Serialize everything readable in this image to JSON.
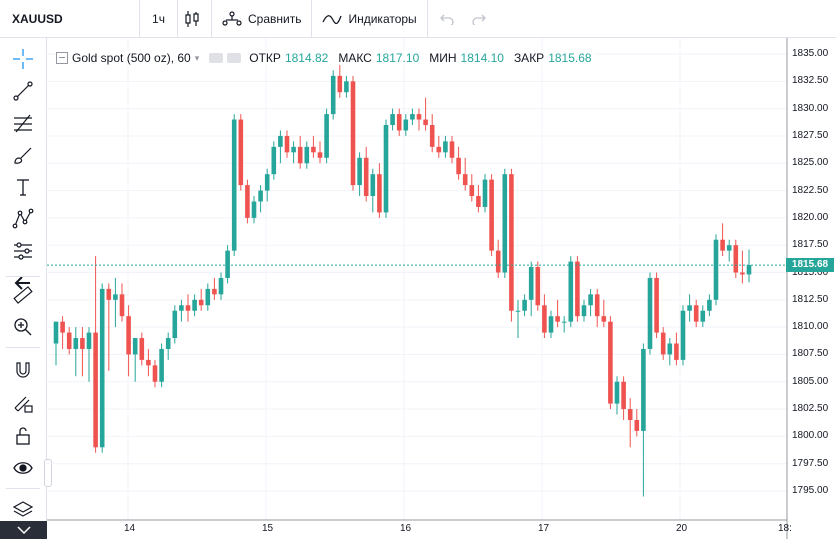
{
  "toolbar": {
    "symbol": "XAUUSD",
    "interval": "1ч",
    "compare_label": "Сравнить",
    "indicators_label": "Индикаторы"
  },
  "legend": {
    "title": "Gold spot (500 oz), 60",
    "open_label": "ОТКР",
    "open_value": "1814.82",
    "high_label": "МАКС",
    "high_value": "1817.10",
    "low_label": "МИН",
    "low_value": "1814.10",
    "close_label": "ЗАКР",
    "close_value": "1815.68"
  },
  "last_price": "1815.68",
  "price_axis": [
    "1835.00",
    "1832.50",
    "1830.00",
    "1827.50",
    "1825.00",
    "1822.50",
    "1820.00",
    "1817.50",
    "1815.00",
    "1812.50",
    "1810.00",
    "1807.50",
    "1805.00",
    "1802.50",
    "1800.00",
    "1797.50",
    "1795.00"
  ],
  "time_axis": [
    "14",
    "15",
    "16",
    "17",
    "20",
    "18:"
  ],
  "colors": {
    "up": "#26a69a",
    "down": "#ef5350",
    "accent": "#2196f3"
  },
  "chart_data": {
    "type": "candlestick",
    "title": "Gold spot (500 oz), 60",
    "ylim": [
      1793.5,
      1836
    ],
    "last": 1815.68,
    "candles": [
      [
        1808.5,
        1810.5,
        1806.5,
        1810.5
      ],
      [
        1810.5,
        1811.0,
        1808.0,
        1809.5
      ],
      [
        1809.5,
        1810.0,
        1807.5,
        1808.0
      ],
      [
        1808.0,
        1810.0,
        1805.5,
        1809.0
      ],
      [
        1809.0,
        1810.0,
        1805.5,
        1808.0
      ],
      [
        1808.0,
        1810.0,
        1805.0,
        1809.5
      ],
      [
        1809.5,
        1816.5,
        1798.5,
        1799.0
      ],
      [
        1799.0,
        1814.0,
        1798.5,
        1813.5
      ],
      [
        1813.5,
        1814.0,
        1806.0,
        1812.5
      ],
      [
        1812.5,
        1814.5,
        1810.0,
        1813.0
      ],
      [
        1813.0,
        1814.0,
        1810.5,
        1811.0
      ],
      [
        1811.0,
        1812.0,
        1805.5,
        1807.5
      ],
      [
        1807.5,
        1809.0,
        1805.0,
        1809.0
      ],
      [
        1809.0,
        1809.5,
        1806.5,
        1807.0
      ],
      [
        1807.0,
        1808.0,
        1805.5,
        1806.5
      ],
      [
        1806.5,
        1807.0,
        1804.5,
        1805.0
      ],
      [
        1805.0,
        1808.5,
        1804.5,
        1808.0
      ],
      [
        1808.0,
        1809.5,
        1807.0,
        1809.0
      ],
      [
        1809.0,
        1812.0,
        1808.5,
        1811.5
      ],
      [
        1811.5,
        1812.5,
        1810.5,
        1812.0
      ],
      [
        1812.0,
        1813.0,
        1810.5,
        1811.5
      ],
      [
        1811.5,
        1813.0,
        1811.0,
        1812.5
      ],
      [
        1812.5,
        1813.5,
        1811.5,
        1812.0
      ],
      [
        1812.0,
        1814.0,
        1811.5,
        1813.5
      ],
      [
        1813.5,
        1814.5,
        1812.5,
        1813.0
      ],
      [
        1813.0,
        1815.0,
        1812.5,
        1814.5
      ],
      [
        1814.5,
        1817.5,
        1814.0,
        1817.0
      ],
      [
        1817.0,
        1829.5,
        1816.5,
        1829.0
      ],
      [
        1829.0,
        1829.5,
        1822.5,
        1823.0
      ],
      [
        1823.0,
        1823.5,
        1819.5,
        1820.0
      ],
      [
        1820.0,
        1822.0,
        1819.5,
        1821.5
      ],
      [
        1821.5,
        1823.0,
        1820.5,
        1822.5
      ],
      [
        1822.5,
        1824.5,
        1821.5,
        1824.0
      ],
      [
        1824.0,
        1827.0,
        1823.5,
        1826.5
      ],
      [
        1826.5,
        1828.0,
        1825.0,
        1827.5
      ],
      [
        1827.5,
        1828.0,
        1825.5,
        1826.0
      ],
      [
        1826.0,
        1827.0,
        1825.0,
        1826.5
      ],
      [
        1826.5,
        1827.5,
        1824.5,
        1825.0
      ],
      [
        1825.0,
        1827.0,
        1824.5,
        1826.5
      ],
      [
        1826.5,
        1827.5,
        1825.5,
        1826.0
      ],
      [
        1826.0,
        1827.0,
        1825.0,
        1825.5
      ],
      [
        1825.5,
        1830.0,
        1825.0,
        1829.5
      ],
      [
        1829.5,
        1833.5,
        1829.0,
        1833.0
      ],
      [
        1833.0,
        1834.0,
        1831.0,
        1831.5
      ],
      [
        1831.5,
        1833.0,
        1831.0,
        1832.5
      ],
      [
        1832.5,
        1833.0,
        1822.5,
        1823.0
      ],
      [
        1823.0,
        1826.0,
        1822.0,
        1825.5
      ],
      [
        1825.5,
        1826.5,
        1821.5,
        1822.0
      ],
      [
        1822.0,
        1824.5,
        1820.5,
        1824.0
      ],
      [
        1824.0,
        1825.0,
        1820.0,
        1820.5
      ],
      [
        1820.5,
        1829.0,
        1820.0,
        1828.5
      ],
      [
        1828.5,
        1830.0,
        1828.0,
        1829.5
      ],
      [
        1829.5,
        1830.0,
        1827.5,
        1828.0
      ],
      [
        1828.0,
        1829.5,
        1827.5,
        1829.0
      ],
      [
        1829.0,
        1830.0,
        1828.5,
        1829.5
      ],
      [
        1829.5,
        1830.0,
        1828.0,
        1829.0
      ],
      [
        1829.0,
        1831.0,
        1828.0,
        1828.5
      ],
      [
        1828.5,
        1829.5,
        1826.0,
        1826.5
      ],
      [
        1826.5,
        1827.5,
        1825.5,
        1826.0
      ],
      [
        1826.0,
        1827.5,
        1825.5,
        1827.0
      ],
      [
        1827.0,
        1827.5,
        1825.0,
        1825.5
      ],
      [
        1825.5,
        1826.5,
        1823.5,
        1824.0
      ],
      [
        1824.0,
        1825.5,
        1822.5,
        1823.0
      ],
      [
        1823.0,
        1824.0,
        1821.5,
        1822.0
      ],
      [
        1822.0,
        1823.0,
        1820.5,
        1821.0
      ],
      [
        1821.0,
        1824.0,
        1820.5,
        1823.5
      ],
      [
        1823.5,
        1824.0,
        1816.5,
        1817.0
      ],
      [
        1817.0,
        1818.0,
        1814.5,
        1815.0
      ],
      [
        1815.0,
        1824.5,
        1814.5,
        1824.0
      ],
      [
        1824.0,
        1824.5,
        1810.5,
        1811.5
      ],
      [
        1811.5,
        1812.5,
        1809.0,
        1811.5
      ],
      [
        1811.5,
        1813.0,
        1811.0,
        1812.5
      ],
      [
        1812.5,
        1816.0,
        1811.0,
        1815.5
      ],
      [
        1815.5,
        1816.0,
        1811.5,
        1812.0
      ],
      [
        1812.0,
        1813.0,
        1809.0,
        1809.5
      ],
      [
        1809.5,
        1811.5,
        1809.0,
        1811.0
      ],
      [
        1811.0,
        1812.5,
        1810.0,
        1810.5
      ],
      [
        1810.5,
        1811.0,
        1809.5,
        1810.5
      ],
      [
        1810.5,
        1816.5,
        1810.0,
        1816.0
      ],
      [
        1816.0,
        1816.5,
        1810.5,
        1811.0
      ],
      [
        1811.0,
        1812.5,
        1810.5,
        1812.0
      ],
      [
        1812.0,
        1813.5,
        1811.0,
        1813.0
      ],
      [
        1813.0,
        1813.5,
        1810.0,
        1811.0
      ],
      [
        1811.0,
        1812.5,
        1810.0,
        1810.5
      ],
      [
        1810.5,
        1811.0,
        1802.5,
        1803.0
      ],
      [
        1803.0,
        1805.5,
        1802.0,
        1805.0
      ],
      [
        1805.0,
        1805.5,
        1801.5,
        1802.5
      ],
      [
        1802.5,
        1803.5,
        1799.0,
        1801.5
      ],
      [
        1801.5,
        1802.5,
        1800.0,
        1800.5
      ],
      [
        1800.5,
        1808.5,
        1794.5,
        1808.0
      ],
      [
        1808.0,
        1815.0,
        1807.5,
        1814.5
      ],
      [
        1814.5,
        1815.0,
        1809.0,
        1809.5
      ],
      [
        1809.5,
        1810.0,
        1807.0,
        1807.5
      ],
      [
        1807.5,
        1809.0,
        1806.5,
        1808.5
      ],
      [
        1808.5,
        1809.5,
        1806.5,
        1807.0
      ],
      [
        1807.0,
        1812.0,
        1806.5,
        1811.5
      ],
      [
        1811.5,
        1813.0,
        1810.5,
        1812.0
      ],
      [
        1812.0,
        1812.5,
        1810.0,
        1810.5
      ],
      [
        1810.5,
        1812.0,
        1810.0,
        1811.5
      ],
      [
        1811.5,
        1813.0,
        1811.0,
        1812.5
      ],
      [
        1812.5,
        1818.5,
        1812.0,
        1818.0
      ],
      [
        1818.0,
        1819.5,
        1816.5,
        1817.0
      ],
      [
        1817.0,
        1818.0,
        1816.0,
        1817.5
      ],
      [
        1817.5,
        1818.0,
        1814.5,
        1815.0
      ],
      [
        1815.0,
        1817.0,
        1814.0,
        1814.82
      ],
      [
        1814.82,
        1817.1,
        1814.1,
        1815.68
      ]
    ]
  }
}
